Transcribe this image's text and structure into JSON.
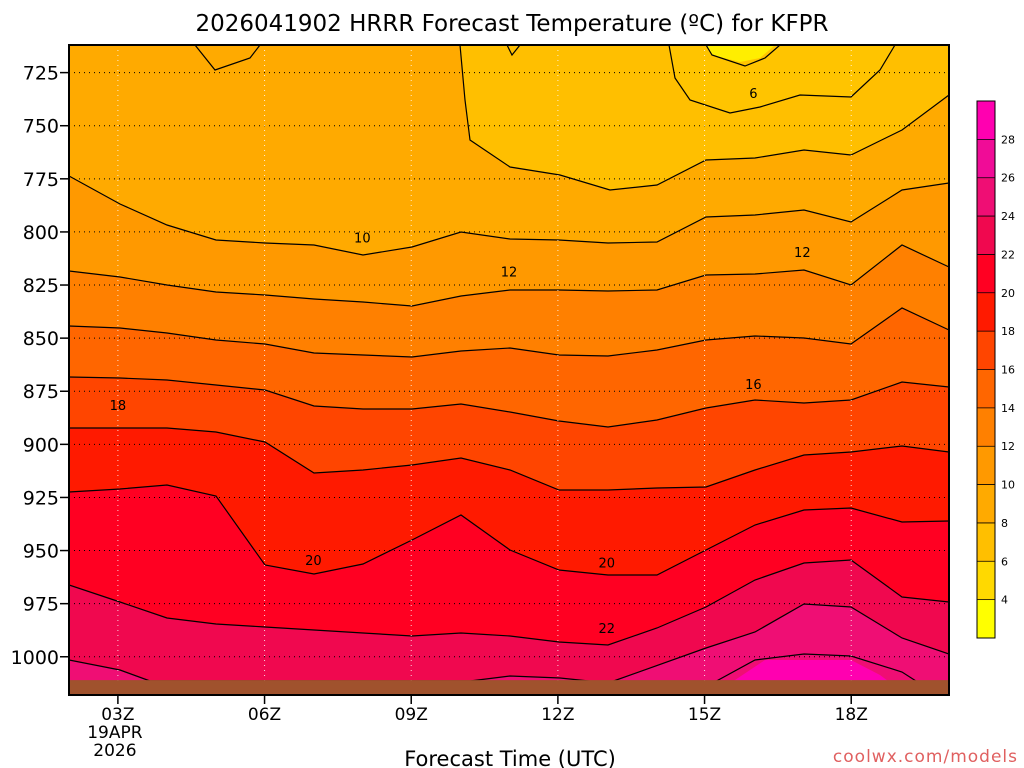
{
  "chart_data": {
    "type": "heatmap",
    "title": "2026041902 HRRR Forecast Temperature (ºC) for KFPR",
    "xlabel": "Forecast Time (UTC)",
    "ylabel": "",
    "x_ticks": [
      {
        "hour": 3,
        "label": "03Z",
        "sub1": "19APR",
        "sub2": "2026"
      },
      {
        "hour": 6,
        "label": "06Z"
      },
      {
        "hour": 9,
        "label": "09Z"
      },
      {
        "hour": 12,
        "label": "12Z"
      },
      {
        "hour": 15,
        "label": "15Z"
      },
      {
        "hour": 18,
        "label": "18Z"
      }
    ],
    "xlim": [
      2,
      20
    ],
    "y_ticks": [
      725,
      750,
      775,
      800,
      825,
      850,
      875,
      900,
      925,
      950,
      975,
      1000
    ],
    "ylim": [
      712,
      1018
    ],
    "surface_pressure": 1011,
    "colorbar_ticks": [
      4,
      6,
      8,
      10,
      12,
      14,
      16,
      18,
      20,
      22,
      24,
      26,
      28
    ],
    "colorbar_range": [
      2,
      30
    ],
    "palette": [
      "#ffff00",
      "#ffd900",
      "#ffbf00",
      "#ffaa00",
      "#ff9900",
      "#ff8000",
      "#ff6600",
      "#ff4500",
      "#ff1a00",
      "#ff0022",
      "#f0084f",
      "#ef0e74",
      "#f00c97",
      "#ff00b0"
    ],
    "contour_labels": [
      {
        "value": "6",
        "hour": 16.0,
        "p": 735
      },
      {
        "value": "10",
        "hour": 8.0,
        "p": 803
      },
      {
        "value": "12",
        "hour": 11.0,
        "p": 819
      },
      {
        "value": "12",
        "hour": 17.0,
        "p": 810
      },
      {
        "value": "16",
        "hour": 16.0,
        "p": 872
      },
      {
        "value": "18",
        "hour": 3.0,
        "p": 882
      },
      {
        "value": "20",
        "hour": 7.0,
        "p": 955
      },
      {
        "value": "20",
        "hour": 13.0,
        "p": 956
      },
      {
        "value": "22",
        "hour": 13.0,
        "p": 987
      }
    ]
  },
  "credit": "coolwx.com/models",
  "colors": {
    "ground": "#a0522d",
    "frame": "#000000",
    "credit": "#e06060"
  }
}
